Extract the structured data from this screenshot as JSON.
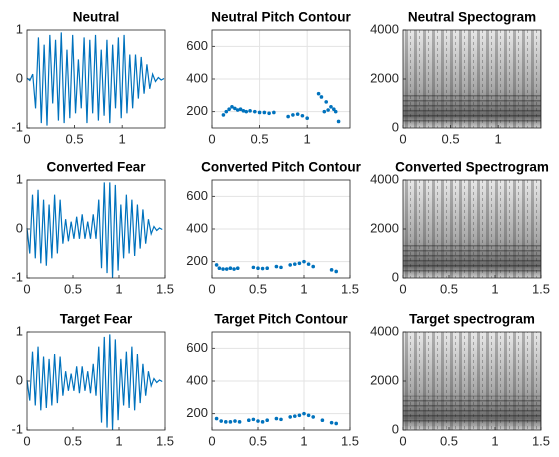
{
  "chart_data": [
    {
      "type": "waveform",
      "title": "Neutral",
      "color": "#0072bd",
      "xlim": [
        0,
        1.45
      ],
      "xticks": [
        0,
        0.5,
        1
      ],
      "ylim": [
        -1,
        1
      ],
      "yticks": [
        -1,
        0,
        1
      ],
      "grid": false,
      "x": [
        0,
        0.03,
        0.06,
        0.09,
        0.12,
        0.15,
        0.18,
        0.21,
        0.24,
        0.27,
        0.3,
        0.33,
        0.36,
        0.39,
        0.42,
        0.45,
        0.48,
        0.51,
        0.54,
        0.57,
        0.6,
        0.63,
        0.66,
        0.69,
        0.72,
        0.75,
        0.78,
        0.81,
        0.84,
        0.87,
        0.9,
        0.93,
        0.96,
        0.99,
        1.02,
        1.05,
        1.08,
        1.11,
        1.14,
        1.17,
        1.2,
        1.23,
        1.26,
        1.29,
        1.32,
        1.35,
        1.38,
        1.41,
        1.44
      ],
      "values": [
        0.02,
        -0.03,
        0.1,
        -0.6,
        0.85,
        -0.9,
        0.7,
        -0.95,
        0.9,
        -0.5,
        0.8,
        -0.85,
        0.95,
        -0.9,
        0.6,
        -0.8,
        0.9,
        -0.7,
        0.4,
        -0.6,
        0.85,
        -0.9,
        0.8,
        -0.7,
        0.9,
        -0.85,
        0.6,
        -0.75,
        0.8,
        -0.9,
        0.7,
        -0.6,
        0.85,
        -0.8,
        0.9,
        -0.7,
        0.5,
        -0.6,
        0.5,
        -0.4,
        0.45,
        -0.3,
        0.3,
        -0.2,
        0.1,
        -0.05,
        0.03,
        -0.02,
        0.01
      ]
    },
    {
      "type": "scatter",
      "title": "Neutral Pitch Contour",
      "color": "#0072bd",
      "xlim": [
        0,
        1.45
      ],
      "xticks": [
        0,
        0.5,
        1
      ],
      "ylim": [
        100,
        700
      ],
      "yticks": [
        200,
        400,
        600
      ],
      "grid": true,
      "x": [
        0.12,
        0.15,
        0.18,
        0.21,
        0.24,
        0.27,
        0.3,
        0.33,
        0.36,
        0.4,
        0.45,
        0.5,
        0.55,
        0.6,
        0.65,
        0.8,
        0.85,
        0.9,
        0.95,
        1.0,
        1.12,
        1.15,
        1.18,
        1.2,
        1.22,
        1.25,
        1.28,
        1.3,
        1.33
      ],
      "values": [
        180,
        200,
        215,
        230,
        220,
        210,
        215,
        205,
        200,
        205,
        200,
        195,
        195,
        190,
        195,
        170,
        180,
        185,
        175,
        160,
        310,
        290,
        200,
        260,
        210,
        230,
        215,
        200,
        140
      ]
    },
    {
      "type": "spectrogram",
      "title": "Neutral Spectogram",
      "xlim": [
        0,
        1.45
      ],
      "xticks": [
        0,
        0.5,
        1
      ],
      "ylim": [
        0,
        4000
      ],
      "yticks": [
        0,
        2000,
        4000
      ]
    },
    {
      "type": "waveform",
      "title": "Converted Fear",
      "color": "#0072bd",
      "xlim": [
        0,
        1.5
      ],
      "xticks": [
        0,
        0.5,
        1,
        1.5
      ],
      "ylim": [
        -1,
        1
      ],
      "yticks": [
        -1,
        0,
        1
      ],
      "grid": false,
      "x": [
        0,
        0.03,
        0.06,
        0.09,
        0.12,
        0.15,
        0.18,
        0.21,
        0.24,
        0.27,
        0.3,
        0.33,
        0.36,
        0.39,
        0.42,
        0.45,
        0.48,
        0.51,
        0.54,
        0.57,
        0.6,
        0.63,
        0.66,
        0.69,
        0.72,
        0.75,
        0.78,
        0.81,
        0.84,
        0.87,
        0.9,
        0.93,
        0.96,
        0.99,
        1.02,
        1.05,
        1.08,
        1.11,
        1.14,
        1.17,
        1.2,
        1.23,
        1.26,
        1.29,
        1.32,
        1.35,
        1.38,
        1.41,
        1.44,
        1.47
      ],
      "values": [
        0.02,
        -0.5,
        0.7,
        -0.6,
        0.8,
        -0.7,
        0.6,
        -0.75,
        0.5,
        -0.6,
        0.7,
        -0.5,
        0.6,
        -0.3,
        0.2,
        -0.25,
        0.15,
        -0.2,
        0.25,
        -0.2,
        0.3,
        -0.2,
        0.15,
        -0.2,
        0.3,
        -0.2,
        0.6,
        -0.8,
        0.95,
        -0.9,
        0.95,
        -1,
        0.9,
        -0.85,
        0.5,
        -0.6,
        0.7,
        -0.5,
        0.6,
        -0.55,
        0.5,
        -0.4,
        0.4,
        -0.3,
        0.2,
        -0.1,
        0.05,
        -0.03,
        0.02,
        -0.01
      ]
    },
    {
      "type": "scatter",
      "title": "Converted Pitch Contour",
      "color": "#0072bd",
      "xlim": [
        0,
        1.5
      ],
      "xticks": [
        0,
        0.5,
        1,
        1.5
      ],
      "ylim": [
        100,
        700
      ],
      "yticks": [
        200,
        400,
        600
      ],
      "grid": true,
      "x": [
        0.05,
        0.08,
        0.12,
        0.16,
        0.2,
        0.24,
        0.28,
        0.45,
        0.5,
        0.55,
        0.6,
        0.7,
        0.75,
        0.85,
        0.9,
        0.95,
        1.0,
        1.05,
        1.1,
        1.3,
        1.35
      ],
      "values": [
        180,
        160,
        155,
        155,
        160,
        155,
        160,
        165,
        160,
        158,
        160,
        170,
        165,
        180,
        185,
        190,
        200,
        185,
        170,
        150,
        140
      ]
    },
    {
      "type": "spectrogram",
      "title": "Converted Spectrogram",
      "xlim": [
        0,
        1.5
      ],
      "xticks": [
        0,
        0.5,
        1,
        1.5
      ],
      "ylim": [
        0,
        4000
      ],
      "yticks": [
        0,
        2000,
        4000
      ]
    },
    {
      "type": "waveform",
      "title": "Target Fear",
      "color": "#0072bd",
      "xlim": [
        0,
        1.5
      ],
      "xticks": [
        0,
        0.5,
        1,
        1.5
      ],
      "ylim": [
        -1,
        1
      ],
      "yticks": [
        -1,
        0,
        1
      ],
      "grid": false,
      "x": [
        0,
        0.03,
        0.06,
        0.09,
        0.12,
        0.15,
        0.18,
        0.21,
        0.24,
        0.27,
        0.3,
        0.33,
        0.36,
        0.39,
        0.42,
        0.45,
        0.48,
        0.51,
        0.54,
        0.57,
        0.6,
        0.63,
        0.66,
        0.69,
        0.72,
        0.75,
        0.78,
        0.81,
        0.84,
        0.87,
        0.9,
        0.93,
        0.96,
        0.99,
        1.02,
        1.05,
        1.08,
        1.11,
        1.14,
        1.17,
        1.2,
        1.23,
        1.26,
        1.29,
        1.32,
        1.35,
        1.38,
        1.41,
        1.44,
        1.47
      ],
      "values": [
        0.02,
        -0.4,
        0.6,
        -0.5,
        0.7,
        -0.6,
        0.5,
        -0.55,
        0.45,
        -0.5,
        0.55,
        -0.45,
        0.5,
        -0.3,
        0.2,
        -0.2,
        0.15,
        -0.2,
        0.3,
        -0.25,
        0.3,
        -0.2,
        0.2,
        -0.25,
        0.35,
        -0.3,
        0.7,
        -0.85,
        0.9,
        -0.95,
        0.95,
        -1,
        0.85,
        -0.8,
        0.45,
        -0.5,
        0.6,
        -0.55,
        0.7,
        -0.6,
        0.55,
        -0.45,
        0.35,
        -0.3,
        0.2,
        -0.1,
        0.05,
        -0.03,
        0.02,
        -0.01
      ]
    },
    {
      "type": "scatter",
      "title": "Target Pitch Contour",
      "color": "#0072bd",
      "xlim": [
        0,
        1.5
      ],
      "xticks": [
        0,
        0.5,
        1,
        1.5
      ],
      "ylim": [
        100,
        700
      ],
      "yticks": [
        200,
        400,
        600
      ],
      "grid": true,
      "x": [
        0.05,
        0.1,
        0.15,
        0.2,
        0.25,
        0.3,
        0.4,
        0.45,
        0.5,
        0.55,
        0.6,
        0.7,
        0.75,
        0.85,
        0.9,
        0.95,
        1.0,
        1.05,
        1.1,
        1.2,
        1.3,
        1.35
      ],
      "values": [
        170,
        155,
        150,
        150,
        155,
        150,
        160,
        165,
        155,
        150,
        160,
        170,
        165,
        180,
        185,
        190,
        200,
        190,
        180,
        160,
        145,
        140
      ]
    },
    {
      "type": "spectrogram",
      "title": "Target spectrogram",
      "xlim": [
        0,
        1.5
      ],
      "xticks": [
        0,
        0.5,
        1,
        1.5
      ],
      "ylim": [
        0,
        4000
      ],
      "yticks": [
        0,
        2000,
        4000
      ]
    }
  ]
}
